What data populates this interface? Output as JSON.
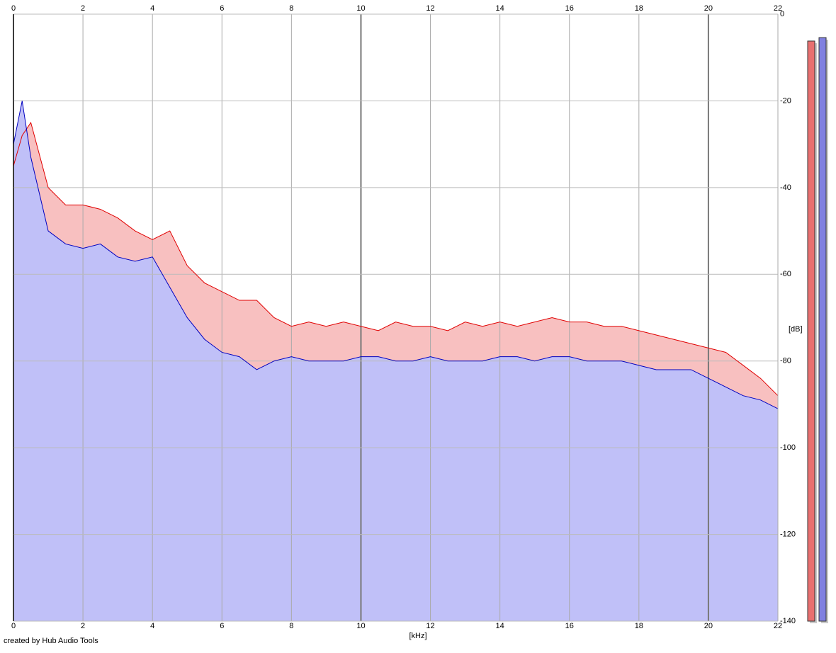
{
  "chart_data": {
    "type": "spectrum",
    "x_label": "[kHz]",
    "y_label": "[dB]",
    "footer": "created by Hub Audio Tools",
    "x": [
      0,
      0.25,
      0.5,
      1,
      1.5,
      2,
      2.5,
      3,
      3.5,
      4,
      4.5,
      5,
      5.5,
      6,
      6.5,
      7,
      7.5,
      8,
      8.5,
      9,
      9.5,
      10,
      10.5,
      11,
      11.5,
      12,
      12.5,
      13,
      13.5,
      14,
      14.5,
      15,
      15.5,
      16,
      16.5,
      17,
      17.5,
      18,
      18.5,
      19,
      19.5,
      20,
      20.5,
      21,
      21.5,
      22
    ],
    "series": [
      {
        "color": "#e00000",
        "fill": "#f8c0c0",
        "values": [
          -35,
          -28,
          -25,
          -40,
          -44,
          -44,
          -45,
          -47,
          -50,
          -52,
          -50,
          -58,
          -62,
          -64,
          -66,
          -66,
          -70,
          -72,
          -71,
          -72,
          -71,
          -72,
          -73,
          -71,
          -72,
          -72,
          -73,
          -71,
          -72,
          -71,
          -72,
          -71,
          -70,
          -71,
          -71,
          -72,
          -72,
          -73,
          -74,
          -75,
          -76,
          -77,
          -78,
          -81,
          -84,
          -88
        ]
      },
      {
        "color": "#0000c0",
        "fill": "#c0c0f8",
        "values": [
          -30,
          -20,
          -33,
          -50,
          -53,
          -54,
          -53,
          -56,
          -57,
          -56,
          -63,
          -70,
          -75,
          -78,
          -79,
          -82,
          -80,
          -79,
          -80,
          -80,
          -80,
          -79,
          -79,
          -80,
          -80,
          -79,
          -80,
          -80,
          -80,
          -79,
          -79,
          -80,
          -79,
          -79,
          -80,
          -80,
          -80,
          -81,
          -82,
          -82,
          -82,
          -84,
          -86,
          -88,
          -89,
          -91
        ]
      }
    ],
    "meters": [
      {
        "color": "#e87070",
        "value": -6.2
      },
      {
        "color": "#8080e0",
        "value": -5.4
      }
    ],
    "xlim": [
      0,
      22
    ],
    "xticks": [
      0,
      2,
      4,
      6,
      8,
      10,
      12,
      14,
      16,
      18,
      20,
      22
    ],
    "ylim": [
      -140,
      0
    ],
    "yticks": [
      0,
      -20,
      -40,
      -60,
      -80,
      -100,
      -120,
      -140
    ],
    "grid": true
  }
}
